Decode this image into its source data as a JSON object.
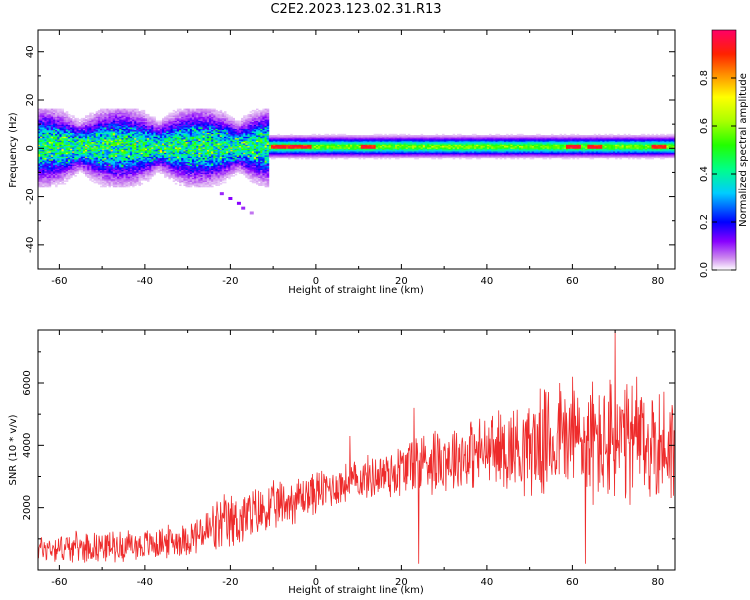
{
  "title": "C2E2.2023.123.02.31.R13",
  "colors": {
    "snr_line": "#ee2b2b",
    "colormap": [
      "#ffffff",
      "#cc88ee",
      "#7700ff",
      "#0000ff",
      "#00ddff",
      "#00ff66",
      "#66ff00",
      "#ffff00",
      "#ff8800",
      "#ff0000",
      "#ff0066"
    ]
  },
  "chart_data": [
    {
      "type": "heatmap",
      "title": "",
      "xlabel": "Height of straight line (km)",
      "ylabel": "Frequency (Hz)",
      "xlim": [
        -65,
        84
      ],
      "ylim": [
        -50,
        49
      ],
      "xticks": [
        -60,
        -40,
        -20,
        0,
        20,
        40,
        60,
        80
      ],
      "yticks": [
        -40,
        -20,
        0,
        20,
        40
      ],
      "colorbar": {
        "label": "Normalized spectral amplitude",
        "range": [
          0,
          1
        ],
        "ticks": [
          0.0,
          0.2,
          0.4,
          0.6,
          0.8
        ]
      },
      "description_model": {
        "center_frequency_hz": 0.5,
        "turbulent_region_km": [
          -65,
          -11
        ],
        "turbulent_halfwidth_hz": 12,
        "laminar_region_km": [
          -11,
          84
        ],
        "laminar_halfwidth_hz": 3,
        "peak_amplitude_region_km": [
          -11,
          82
        ],
        "outlier_trail": [
          {
            "x": -22,
            "y": -19,
            "v": 0.1
          },
          {
            "x": -20,
            "y": -21,
            "v": 0.12
          },
          {
            "x": -18,
            "y": -23,
            "v": 0.12
          },
          {
            "x": -17,
            "y": -25,
            "v": 0.1
          },
          {
            "x": -15,
            "y": -27,
            "v": 0.06
          }
        ]
      }
    },
    {
      "type": "line",
      "title": "",
      "xlabel": "Height of straight line (km)",
      "ylabel": "SNR (10 * v/v)",
      "xlim": [
        -65,
        84
      ],
      "ylim": [
        0,
        7700
      ],
      "xticks": [
        -60,
        -40,
        -20,
        0,
        20,
        40,
        60,
        80
      ],
      "yticks": [
        2000,
        4000,
        6000
      ],
      "series": [
        {
          "name": "",
          "trend": [
            {
              "x": -65,
              "y": 700
            },
            {
              "x": -40,
              "y": 800
            },
            {
              "x": -30,
              "y": 1000
            },
            {
              "x": -20,
              "y": 1500
            },
            {
              "x": -10,
              "y": 2000
            },
            {
              "x": 0,
              "y": 2500
            },
            {
              "x": 10,
              "y": 2900
            },
            {
              "x": 20,
              "y": 3200
            },
            {
              "x": 24,
              "y": 3500
            },
            {
              "x": 30,
              "y": 3600
            },
            {
              "x": 40,
              "y": 3800
            },
            {
              "x": 50,
              "y": 4000
            },
            {
              "x": 60,
              "y": 4200
            },
            {
              "x": 70,
              "y": 4000
            },
            {
              "x": 84,
              "y": 4000
            }
          ],
          "amplitude": [
            {
              "x": -65,
              "y": 500
            },
            {
              "x": -30,
              "y": 600
            },
            {
              "x": -22,
              "y": 1100
            },
            {
              "x": -10,
              "y": 900
            },
            {
              "x": 10,
              "y": 700
            },
            {
              "x": 24,
              "y": 1200
            },
            {
              "x": 40,
              "y": 1300
            },
            {
              "x": 55,
              "y": 2000
            },
            {
              "x": 70,
              "y": 2400
            },
            {
              "x": 84,
              "y": 2000
            }
          ],
          "spikes": [
            {
              "x": 8,
              "y": 4300
            },
            {
              "x": 24,
              "y": 200
            },
            {
              "x": 23,
              "y": 5200
            },
            {
              "x": 60,
              "y": 6200
            },
            {
              "x": 63,
              "y": 200
            },
            {
              "x": 70,
              "y": 7700
            },
            {
              "x": 57,
              "y": 6000
            },
            {
              "x": 75,
              "y": 6200
            }
          ]
        }
      ]
    }
  ]
}
